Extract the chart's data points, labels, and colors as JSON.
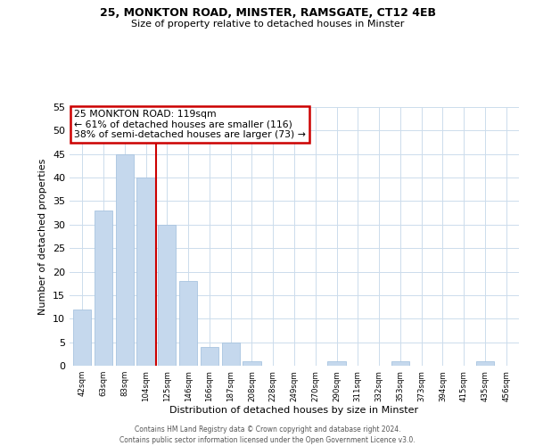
{
  "title1": "25, MONKTON ROAD, MINSTER, RAMSGATE, CT12 4EB",
  "title2": "Size of property relative to detached houses in Minster",
  "xlabel": "Distribution of detached houses by size in Minster",
  "ylabel": "Number of detached properties",
  "bar_labels": [
    "42sqm",
    "63sqm",
    "83sqm",
    "104sqm",
    "125sqm",
    "146sqm",
    "166sqm",
    "187sqm",
    "208sqm",
    "228sqm",
    "249sqm",
    "270sqm",
    "290sqm",
    "311sqm",
    "332sqm",
    "353sqm",
    "373sqm",
    "394sqm",
    "415sqm",
    "435sqm",
    "456sqm"
  ],
  "bar_values": [
    12,
    33,
    45,
    40,
    30,
    18,
    4,
    5,
    1,
    0,
    0,
    0,
    1,
    0,
    0,
    1,
    0,
    0,
    0,
    1,
    0
  ],
  "bar_color": "#c5d8ed",
  "bar_edge_color": "#a8c4e0",
  "property_line_label": "25 MONKTON ROAD: 119sqm",
  "annotation_line1": "← 61% of detached houses are smaller (116)",
  "annotation_line2": "38% of semi-detached houses are larger (73) →",
  "annotation_box_color": "#ffffff",
  "annotation_box_edge": "#cc0000",
  "property_line_color": "#cc0000",
  "ylim": [
    0,
    55
  ],
  "yticks": [
    0,
    5,
    10,
    15,
    20,
    25,
    30,
    35,
    40,
    45,
    50,
    55
  ],
  "grid_color": "#ccdcec",
  "footer1": "Contains HM Land Registry data © Crown copyright and database right 2024.",
  "footer2": "Contains public sector information licensed under the Open Government Licence v3.0."
}
